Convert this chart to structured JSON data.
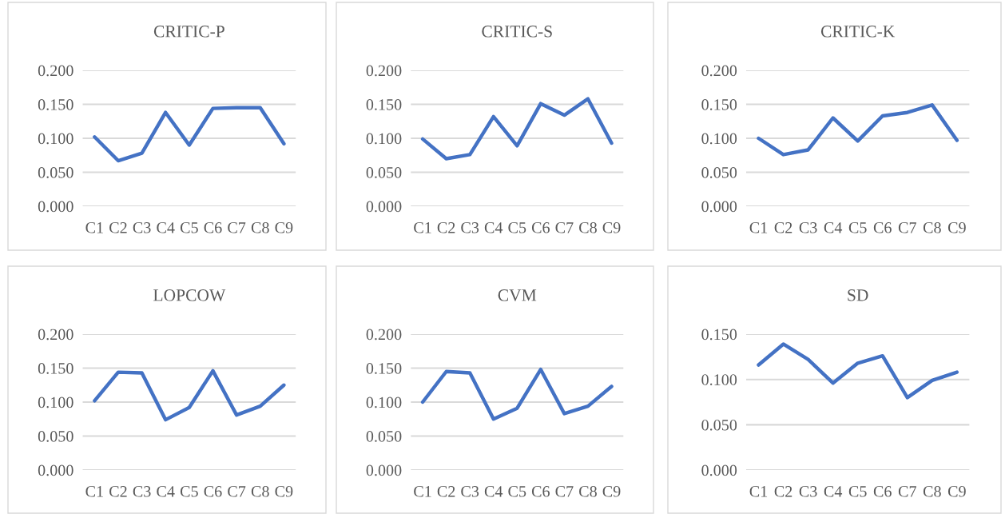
{
  "chart_data": [
    {
      "type": "line",
      "title": "CRITIC-P",
      "categories": [
        "C1",
        "C2",
        "C3",
        "C4",
        "C5",
        "C6",
        "C7",
        "C8",
        "C9"
      ],
      "grid": "y",
      "ylim": [
        0,
        0.2
      ],
      "yticks": [
        {
          "value": 0,
          "label": "0.000"
        },
        {
          "value": 0.05,
          "label": "0.050"
        },
        {
          "value": 0.1,
          "label": "0.100"
        },
        {
          "value": 0.15,
          "label": "0.150"
        },
        {
          "value": 0.2,
          "label": "0.200"
        }
      ],
      "series": [
        {
          "color": "#4472c4",
          "values": [
            0.102,
            0.067,
            0.078,
            0.138,
            0.09,
            0.144,
            0.145,
            0.145,
            0.092
          ]
        }
      ]
    },
    {
      "type": "line",
      "title": "CRITIC-S",
      "categories": [
        "C1",
        "C2",
        "C3",
        "C4",
        "C5",
        "C6",
        "C7",
        "C8",
        "C9"
      ],
      "grid": "y",
      "ylim": [
        0,
        0.2
      ],
      "yticks": [
        {
          "value": 0,
          "label": "0.000"
        },
        {
          "value": 0.05,
          "label": "0.050"
        },
        {
          "value": 0.1,
          "label": "0.100"
        },
        {
          "value": 0.15,
          "label": "0.150"
        },
        {
          "value": 0.2,
          "label": "0.200"
        }
      ],
      "series": [
        {
          "color": "#4472c4",
          "values": [
            0.099,
            0.07,
            0.076,
            0.132,
            0.089,
            0.151,
            0.134,
            0.158,
            0.093
          ]
        }
      ]
    },
    {
      "type": "line",
      "title": "CRITIC-K",
      "categories": [
        "C1",
        "C2",
        "C3",
        "C4",
        "C5",
        "C6",
        "C7",
        "C8",
        "C9"
      ],
      "grid": "y",
      "ylim": [
        0,
        0.2
      ],
      "yticks": [
        {
          "value": 0,
          "label": "0.000"
        },
        {
          "value": 0.05,
          "label": "0.050"
        },
        {
          "value": 0.1,
          "label": "0.100"
        },
        {
          "value": 0.15,
          "label": "0.150"
        },
        {
          "value": 0.2,
          "label": "0.200"
        }
      ],
      "series": [
        {
          "color": "#4472c4",
          "values": [
            0.1,
            0.076,
            0.083,
            0.13,
            0.096,
            0.133,
            0.138,
            0.149,
            0.097
          ]
        }
      ]
    },
    {
      "type": "line",
      "title": "LOPCOW",
      "categories": [
        "C1",
        "C2",
        "C3",
        "C4",
        "C5",
        "C6",
        "C7",
        "C8",
        "C9"
      ],
      "grid": "y",
      "ylim": [
        0,
        0.2
      ],
      "yticks": [
        {
          "value": 0,
          "label": "0.000"
        },
        {
          "value": 0.05,
          "label": "0.050"
        },
        {
          "value": 0.1,
          "label": "0.100"
        },
        {
          "value": 0.15,
          "label": "0.150"
        },
        {
          "value": 0.2,
          "label": "0.200"
        }
      ],
      "series": [
        {
          "color": "#4472c4",
          "values": [
            0.102,
            0.144,
            0.143,
            0.074,
            0.092,
            0.146,
            0.081,
            0.094,
            0.125
          ]
        }
      ]
    },
    {
      "type": "line",
      "title": "CVM",
      "categories": [
        "C1",
        "C2",
        "C3",
        "C4",
        "C5",
        "C6",
        "C7",
        "C8",
        "C9"
      ],
      "grid": "y",
      "ylim": [
        0,
        0.2
      ],
      "yticks": [
        {
          "value": 0,
          "label": "0.000"
        },
        {
          "value": 0.05,
          "label": "0.050"
        },
        {
          "value": 0.1,
          "label": "0.100"
        },
        {
          "value": 0.15,
          "label": "0.150"
        },
        {
          "value": 0.2,
          "label": "0.200"
        }
      ],
      "series": [
        {
          "color": "#4472c4",
          "values": [
            0.1,
            0.145,
            0.143,
            0.075,
            0.091,
            0.148,
            0.083,
            0.094,
            0.123
          ]
        }
      ]
    },
    {
      "type": "line",
      "title": "SD",
      "categories": [
        "C1",
        "C2",
        "C3",
        "C4",
        "C5",
        "C6",
        "C7",
        "C8",
        "C9"
      ],
      "grid": "y",
      "ylim": [
        0,
        0.15
      ],
      "yticks": [
        {
          "value": 0,
          "label": "0.000"
        },
        {
          "value": 0.05,
          "label": "0.050"
        },
        {
          "value": 0.1,
          "label": "0.100"
        },
        {
          "value": 0.15,
          "label": "0.150"
        }
      ],
      "series": [
        {
          "color": "#4472c4",
          "values": [
            0.116,
            0.139,
            0.122,
            0.096,
            0.118,
            0.126,
            0.08,
            0.099,
            0.108
          ]
        }
      ]
    }
  ]
}
